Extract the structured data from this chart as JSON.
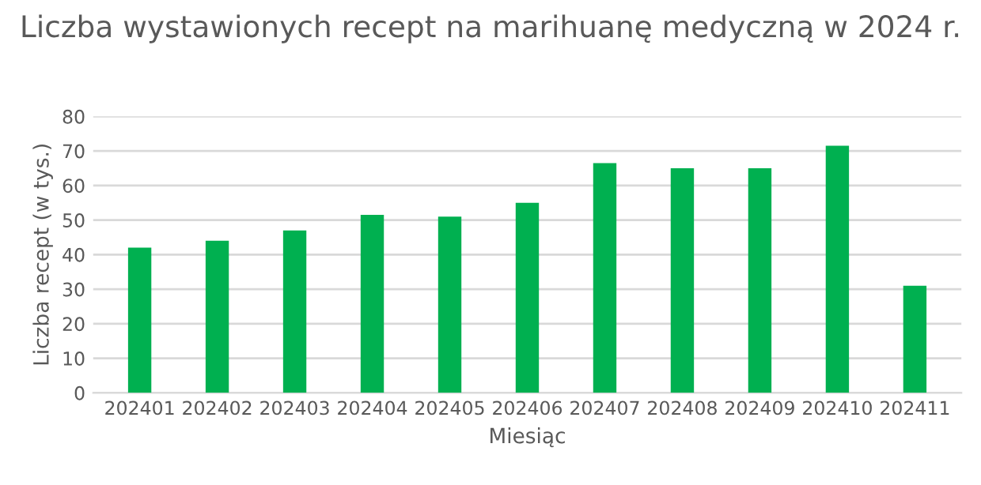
{
  "chart_data": {
    "type": "bar",
    "title": "Liczba wystawionych recept na marihuanę medyczną w 2024 r.",
    "xlabel": "Miesiąc",
    "ylabel": "Liczba recept (w tys.)",
    "categories": [
      "202401",
      "202402",
      "202403",
      "202404",
      "202405",
      "202406",
      "202407",
      "202408",
      "202409",
      "202410",
      "202411"
    ],
    "values": [
      42,
      44,
      47,
      51.5,
      51,
      55,
      66.5,
      65,
      65,
      71.5,
      31
    ],
    "color": "#00b050",
    "ylim": [
      0,
      80
    ],
    "yticks": [
      0,
      10,
      20,
      30,
      40,
      50,
      60,
      70,
      80
    ],
    "grid": "y",
    "legend": false
  }
}
